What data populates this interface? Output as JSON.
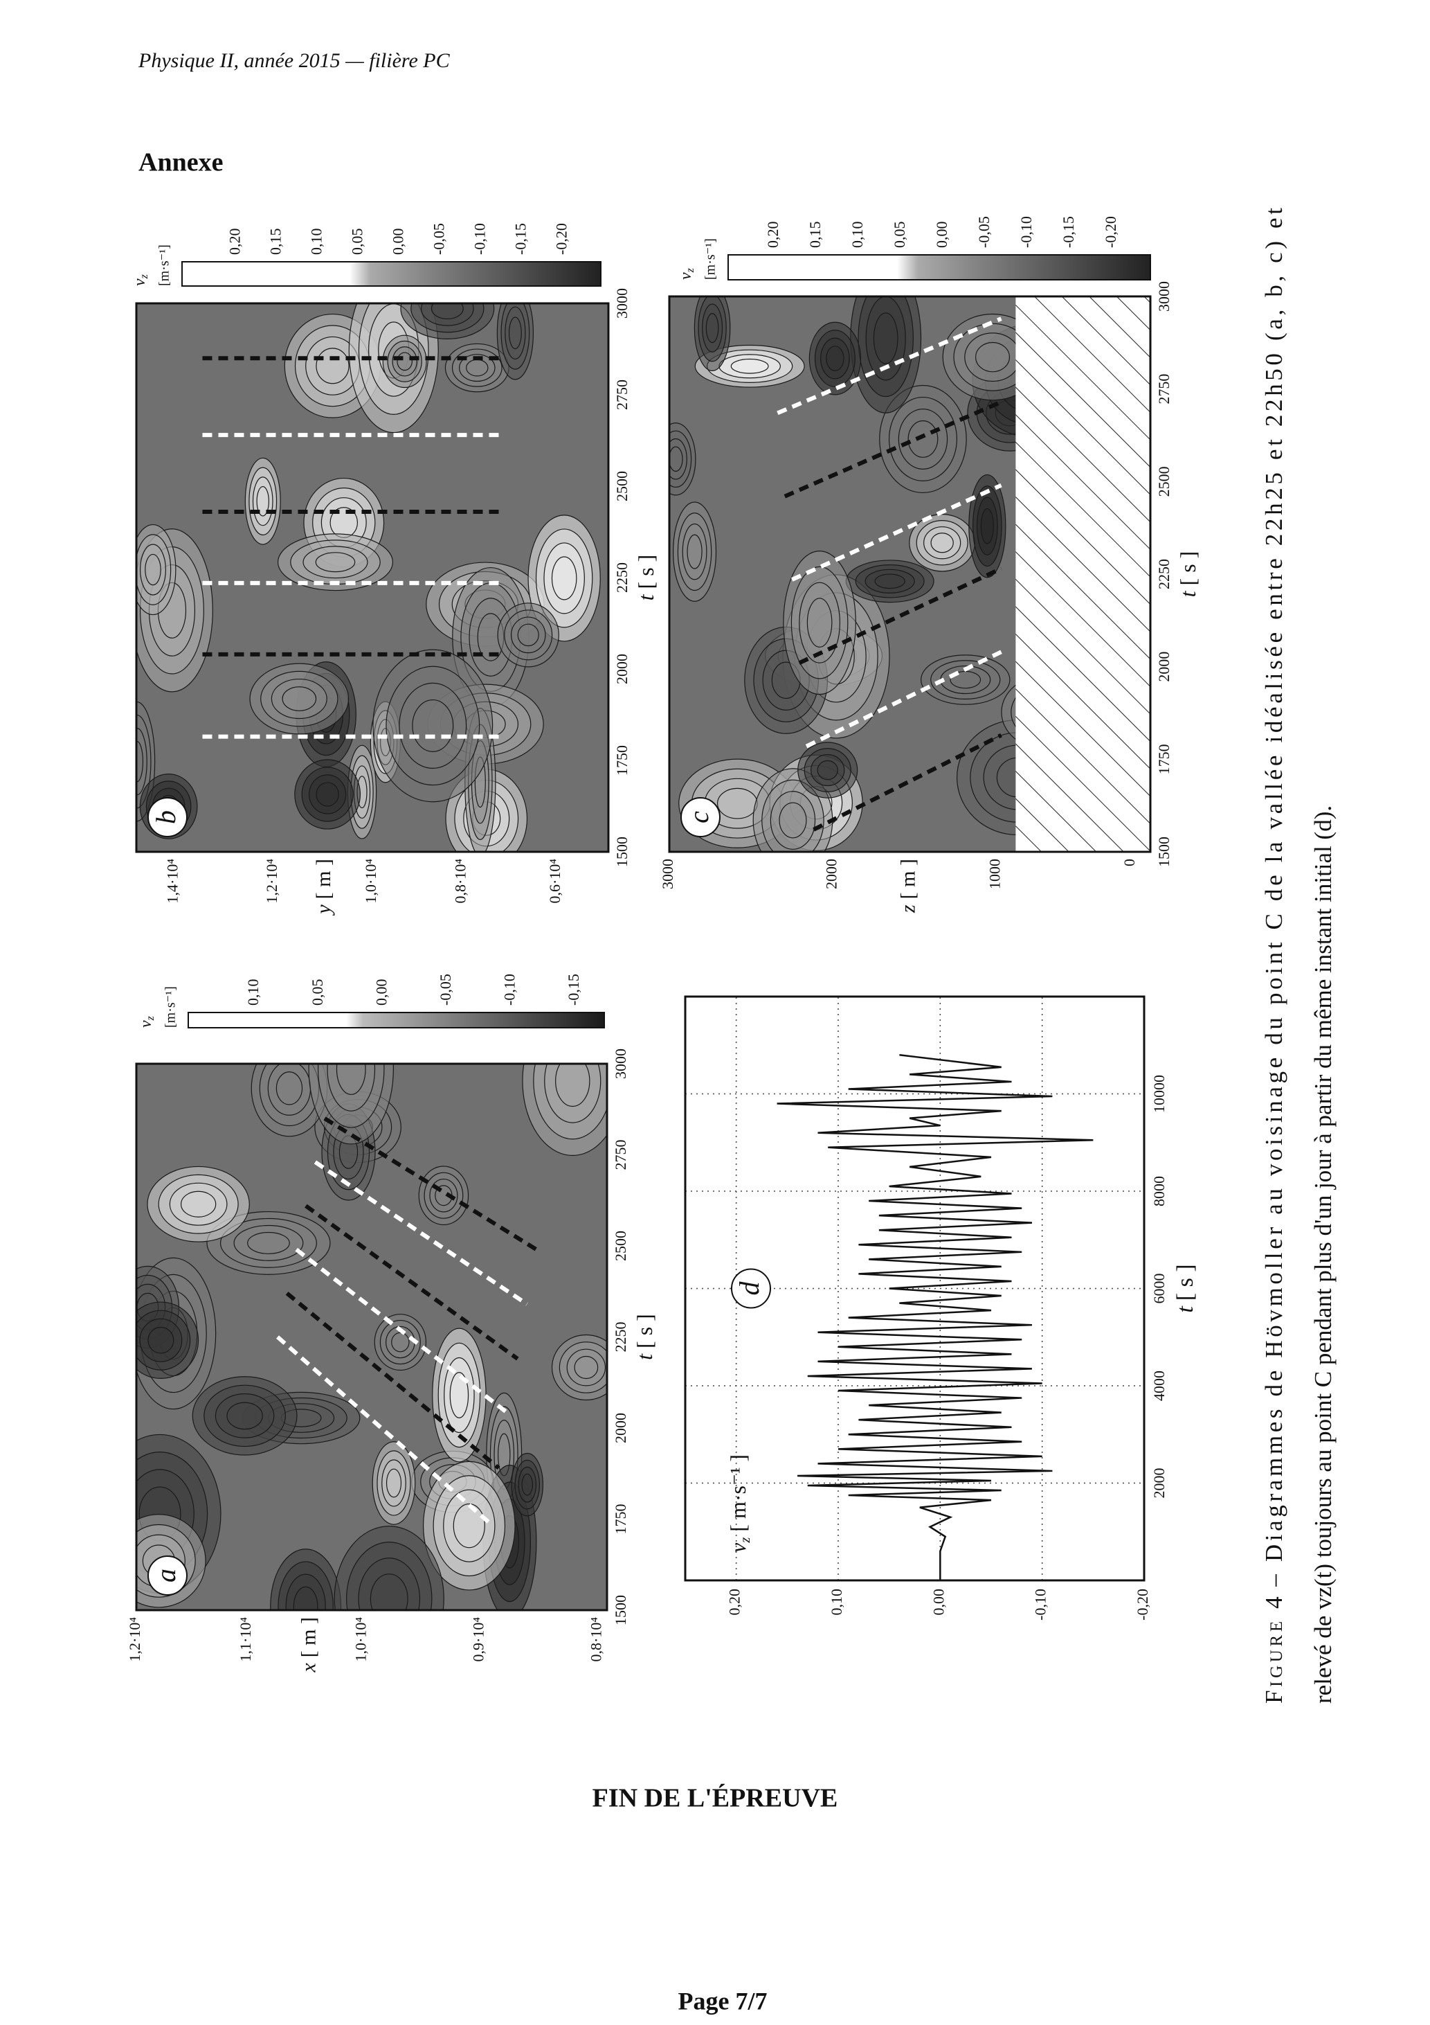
{
  "header": {
    "title": "Physique II, année 2015 — filière PC"
  },
  "section": {
    "title": "Annexe"
  },
  "panels": [
    {
      "label": "a",
      "x_label": {
        "symbol": "t",
        "unit": "[ s ]"
      },
      "y_label": {
        "symbol": "x",
        "unit": "[ m ]"
      },
      "x_ticks": [
        "1500",
        "1750",
        "2000",
        "2250",
        "2500",
        "2750",
        "3000"
      ],
      "y_ticks": [
        "1,2·10⁴",
        "1,1·10⁴",
        "1,0·10⁴",
        "0,9·10⁴",
        "0,8·10⁴"
      ],
      "colorbar": {
        "symbol": "v",
        "subscript": "z",
        "unit": "[m·s⁻¹]",
        "ticks": [
          "0,10",
          "0,05",
          "0,00",
          "-0,05",
          "-0,10",
          "-0,15"
        ]
      }
    },
    {
      "label": "b",
      "x_label": {
        "symbol": "t",
        "unit": "[ s ]"
      },
      "y_label": {
        "symbol": "y",
        "unit": "[ m ]"
      },
      "x_ticks": [
        "1500",
        "1750",
        "2000",
        "2250",
        "2500",
        "2750",
        "3000"
      ],
      "y_ticks": [
        "1,4·10⁴",
        "1,2·10⁴",
        "1,0·10⁴",
        "0,8·10⁴",
        "0,6·10⁴"
      ],
      "colorbar": {
        "symbol": "v",
        "subscript": "z",
        "unit": "[m·s⁻¹]",
        "ticks": [
          "0,20",
          "0,15",
          "0,10",
          "0,05",
          "0,00",
          "-0,05",
          "-0,10",
          "-0,15",
          "-0,20"
        ]
      }
    },
    {
      "label": "c",
      "x_label": {
        "symbol": "t",
        "unit": "[ s ]"
      },
      "y_label": {
        "symbol": "z",
        "unit": "[ m ]"
      },
      "x_ticks": [
        "1500",
        "1750",
        "2000",
        "2250",
        "2500",
        "2750",
        "3000"
      ],
      "y_ticks": [
        "3000",
        "2000",
        "1000",
        "0"
      ],
      "colorbar": {
        "symbol": "v",
        "subscript": "z",
        "unit": "[m·s⁻¹]",
        "ticks": [
          "0,20",
          "0,15",
          "0,10",
          "0,05",
          "0,00",
          "-0,05",
          "-0,10",
          "-0,15",
          "-0,20"
        ]
      }
    }
  ],
  "chart_data": {
    "type": "line",
    "label": "d",
    "xlabel": {
      "symbol": "t",
      "unit": "[ s ]"
    },
    "ylabel": {
      "symbol": "v",
      "subscript": "z",
      "unit": "[ m·s⁻¹ ]"
    },
    "x": [
      0,
      600,
      900,
      1100,
      1300,
      1500,
      1650,
      1750,
      1850,
      1950,
      2050,
      2150,
      2250,
      2400,
      2550,
      2700,
      2850,
      3000,
      3150,
      3300,
      3450,
      3600,
      3750,
      3900,
      4050,
      4200,
      4350,
      4500,
      4650,
      4800,
      4950,
      5100,
      5250,
      5400,
      5550,
      5700,
      5850,
      6000,
      6150,
      6300,
      6450,
      6600,
      6750,
      6900,
      7050,
      7200,
      7350,
      7500,
      7650,
      7800,
      7950,
      8100,
      8300,
      8500,
      8700,
      8900,
      9050,
      9200,
      9350,
      9500,
      9650,
      9800,
      9950,
      10100,
      10250,
      10400,
      10550,
      10800
    ],
    "values": [
      0,
      0,
      -0.005,
      0.01,
      -0.01,
      0.02,
      -0.05,
      0.09,
      -0.06,
      0.13,
      -0.05,
      0.14,
      -0.11,
      0.12,
      -0.1,
      0.1,
      -0.08,
      0.09,
      -0.07,
      0.08,
      -0.06,
      0.07,
      -0.08,
      0.1,
      -0.1,
      0.13,
      -0.09,
      0.12,
      -0.07,
      0.1,
      -0.08,
      0.12,
      -0.09,
      0.09,
      -0.05,
      0.04,
      -0.06,
      0.05,
      -0.07,
      0.08,
      -0.06,
      0.07,
      -0.08,
      0.08,
      -0.07,
      0.06,
      -0.09,
      0.06,
      -0.08,
      0.07,
      -0.07,
      0.05,
      -0.04,
      0.03,
      -0.05,
      0.11,
      -0.15,
      0.12,
      0,
      0.03,
      -0.06,
      0.16,
      -0.11,
      0.09,
      -0.07,
      0.03,
      -0.06,
      0.04
    ],
    "color": "#111111",
    "xlim": [
      0,
      12000
    ],
    "ylim": [
      -0.2,
      0.25
    ],
    "xticks": [
      2000,
      4000,
      6000,
      8000,
      10000
    ],
    "yticks": [
      {
        "value": 0.2,
        "label": "0,20"
      },
      {
        "value": 0.1,
        "label": "0,10"
      },
      {
        "value": 0,
        "label": "0,00"
      },
      {
        "value": -0.1,
        "label": "-0,10"
      },
      {
        "value": -0.2,
        "label": "-0,20"
      }
    ],
    "grid": true
  },
  "caption": {
    "label": "Figure 4",
    "lines": [
      "– Diagrammes de Hövmoller au voisinage du point C de la vallée idéalisée entre 22h25 et 22h50 (a, b, c) et",
      "relevé de vz(t) toujours au point C pendant plus d'un jour à partir du même instant initial (d)."
    ]
  },
  "footer": {
    "end": "FIN DE L'ÉPREUVE",
    "page": "Page 7/7"
  }
}
